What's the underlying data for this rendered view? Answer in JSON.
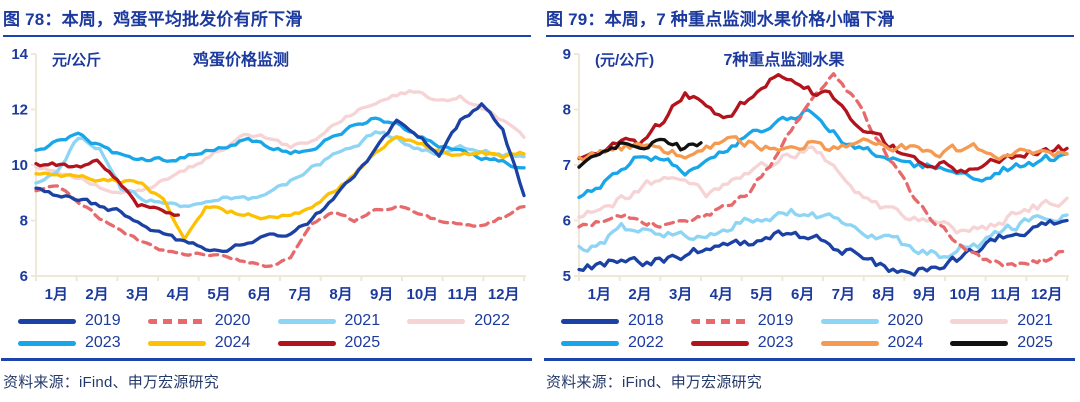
{
  "figures": [
    {
      "title": "图 78：本周，鸡蛋平均批发价有所下滑",
      "source": "资料来源：iFind、申万宏源研究"
    },
    {
      "title": "图 79：本周，7 种重点监测水果价格小幅下滑",
      "source": "资料来源：iFind、申万宏源研究"
    }
  ],
  "colors": {
    "heading_navy": "#1c3a9e",
    "rule_blue": "#1d43ab",
    "axis_beige": "#efe8d8",
    "source_text": "#243a6b"
  },
  "chart_data": [
    {
      "type": "line",
      "title": "鸡蛋价格监测",
      "unit_label": "元/公斤",
      "ylabel": "元/公斤",
      "ylim": [
        6,
        14
      ],
      "yticks": [
        14,
        12,
        10,
        8,
        6
      ],
      "x_tick_labels": [
        "1月",
        "2月",
        "3月",
        "4月",
        "5月",
        "6月",
        "7月",
        "8月",
        "9月",
        "10月",
        "11月",
        "12月"
      ],
      "grid": false,
      "legend_position": "bottom",
      "legend_rows": [
        [
          "2019",
          "2020",
          "2021",
          "2022"
        ],
        [
          "2023",
          "2024",
          "2025"
        ]
      ],
      "draw_order": [
        "2022",
        "2021",
        "2020",
        "2023",
        "2024",
        "2019",
        "2025"
      ],
      "series": [
        {
          "name": "2019",
          "color": "#1a41a3",
          "dash": false,
          "values": [
            9.2,
            8.9,
            8.8,
            8.5,
            8.3,
            7.9,
            7.5,
            7.2,
            7.0,
            7.0,
            7.2,
            7.4,
            7.5,
            8.0,
            8.8,
            9.6,
            10.6,
            11.6,
            11.0,
            10.4,
            11.6,
            12.2,
            11.2,
            8.9
          ]
        },
        {
          "name": "2020",
          "color": "#e8696b",
          "dash": true,
          "values": [
            9.1,
            9.3,
            8.7,
            8.1,
            7.6,
            7.2,
            6.9,
            6.8,
            6.8,
            6.7,
            6.5,
            6.3,
            6.7,
            7.9,
            8.3,
            8.0,
            8.4,
            8.5,
            8.3,
            8.0,
            7.9,
            7.8,
            8.1,
            8.5
          ]
        },
        {
          "name": "2021",
          "color": "#8dd4f5",
          "dash": false,
          "values": [
            9.4,
            9.8,
            11.0,
            10.6,
            9.2,
            8.8,
            8.6,
            8.5,
            8.7,
            8.9,
            8.8,
            9.0,
            9.4,
            9.9,
            10.3,
            10.6,
            11.2,
            11.0,
            10.6,
            10.4,
            10.6,
            10.5,
            10.4,
            10.3
          ]
        },
        {
          "name": "2022",
          "color": "#f6d3d4",
          "dash": false,
          "values": [
            9.9,
            9.7,
            9.5,
            9.2,
            9.0,
            9.1,
            9.4,
            9.8,
            10.2,
            10.7,
            11.1,
            11.0,
            10.6,
            10.9,
            11.4,
            11.9,
            12.2,
            12.5,
            12.7,
            12.3,
            12.5,
            12.0,
            11.6,
            11.0
          ]
        },
        {
          "name": "2023",
          "color": "#18a6e8",
          "dash": false,
          "values": [
            10.5,
            10.9,
            11.1,
            10.7,
            10.3,
            10.2,
            10.2,
            10.3,
            10.5,
            10.7,
            10.9,
            10.7,
            10.4,
            10.6,
            11.0,
            11.4,
            11.7,
            11.5,
            11.0,
            10.7,
            10.5,
            10.3,
            10.1,
            9.9
          ]
        },
        {
          "name": "2024",
          "color": "#fdc101",
          "dash": false,
          "values": [
            9.7,
            9.6,
            9.6,
            9.5,
            9.4,
            9.3,
            8.7,
            7.3,
            8.5,
            8.3,
            8.2,
            8.1,
            8.2,
            8.5,
            9.0,
            9.6,
            10.4,
            11.1,
            10.8,
            10.5,
            10.4,
            10.4,
            10.3,
            10.4
          ]
        },
        {
          "name": "2025",
          "color": "#b2131c",
          "dash": false,
          "end_month": 3.5,
          "values": [
            10.0,
            10.0,
            9.9,
            10.1,
            9.5,
            8.6,
            8.4,
            8.2
          ]
        }
      ]
    },
    {
      "type": "line",
      "title": "7种重点监测水果",
      "unit_label": "(元/公斤)",
      "ylabel": "元/公斤",
      "ylim": [
        5,
        9
      ],
      "yticks": [
        9,
        8,
        7,
        6,
        5
      ],
      "x_tick_labels": [
        "1月",
        "2月",
        "3月",
        "4月",
        "5月",
        "6月",
        "7月",
        "8月",
        "9月",
        "10月",
        "11月",
        "12月"
      ],
      "grid": false,
      "legend_position": "bottom",
      "legend_rows": [
        [
          "2018",
          "2019",
          "2020",
          "2021"
        ],
        [
          "2022",
          "2023",
          "2024",
          "2025"
        ]
      ],
      "draw_order": [
        "2021",
        "2020",
        "2018",
        "2022",
        "2019",
        "2023",
        "2024",
        "2025"
      ],
      "series": [
        {
          "name": "2018",
          "color": "#1a41a3",
          "dash": false,
          "values": [
            5.1,
            5.2,
            5.3,
            5.2,
            5.3,
            5.4,
            5.5,
            5.6,
            5.6,
            5.7,
            5.8,
            5.7,
            5.5,
            5.4,
            5.2,
            5.1,
            5.1,
            5.2,
            5.3,
            5.5,
            5.7,
            5.8,
            5.9,
            6.0
          ]
        },
        {
          "name": "2019",
          "color": "#e8696b",
          "dash": true,
          "values": [
            5.9,
            6.0,
            6.1,
            6.0,
            5.9,
            6.0,
            6.1,
            6.3,
            6.5,
            7.0,
            7.6,
            8.2,
            8.6,
            8.2,
            7.5,
            6.9,
            6.3,
            5.9,
            5.5,
            5.3,
            5.2,
            5.2,
            5.3,
            5.5
          ]
        },
        {
          "name": "2020",
          "color": "#8dd4f5",
          "dash": false,
          "values": [
            5.5,
            5.6,
            5.9,
            5.8,
            5.8,
            5.7,
            5.8,
            5.9,
            6.0,
            6.1,
            6.2,
            6.1,
            6.0,
            5.9,
            5.7,
            5.6,
            5.5,
            5.4,
            5.5,
            5.6,
            5.8,
            6.0,
            6.1,
            6.1
          ]
        },
        {
          "name": "2021",
          "color": "#f6d3d4",
          "dash": false,
          "values": [
            6.1,
            6.2,
            6.4,
            6.6,
            6.8,
            6.7,
            6.5,
            6.6,
            6.8,
            7.0,
            7.2,
            7.3,
            6.9,
            6.5,
            6.3,
            6.1,
            6.0,
            5.9,
            5.8,
            5.9,
            6.0,
            6.2,
            6.3,
            6.4
          ]
        },
        {
          "name": "2022",
          "color": "#18a6e8",
          "dash": false,
          "values": [
            6.4,
            6.6,
            7.0,
            7.2,
            7.1,
            6.9,
            7.0,
            7.3,
            7.5,
            7.7,
            7.9,
            8.0,
            7.6,
            7.3,
            7.2,
            7.1,
            7.0,
            6.9,
            6.9,
            6.8,
            6.9,
            7.0,
            7.1,
            7.2
          ]
        },
        {
          "name": "2023",
          "color": "#b2131c",
          "dash": false,
          "values": [
            7.1,
            7.3,
            7.5,
            7.4,
            7.8,
            8.3,
            8.0,
            7.8,
            8.2,
            8.5,
            8.6,
            8.3,
            8.2,
            7.8,
            7.5,
            7.3,
            7.1,
            7.0,
            6.9,
            7.0,
            7.1,
            7.2,
            7.3,
            7.3
          ]
        },
        {
          "name": "2024",
          "color": "#f59a50",
          "dash": false,
          "values": [
            7.1,
            7.2,
            7.3,
            7.4,
            7.3,
            7.2,
            7.3,
            7.4,
            7.4,
            7.3,
            7.3,
            7.4,
            7.3,
            7.4,
            7.4,
            7.3,
            7.3,
            7.2,
            7.3,
            7.3,
            7.2,
            7.3,
            7.2,
            7.2
          ]
        },
        {
          "name": "2025",
          "color": "#111111",
          "dash": false,
          "end_month": 3.0,
          "values": [
            7.0,
            7.1,
            7.35,
            7.3,
            7.45,
            7.3,
            7.4
          ]
        }
      ]
    }
  ]
}
